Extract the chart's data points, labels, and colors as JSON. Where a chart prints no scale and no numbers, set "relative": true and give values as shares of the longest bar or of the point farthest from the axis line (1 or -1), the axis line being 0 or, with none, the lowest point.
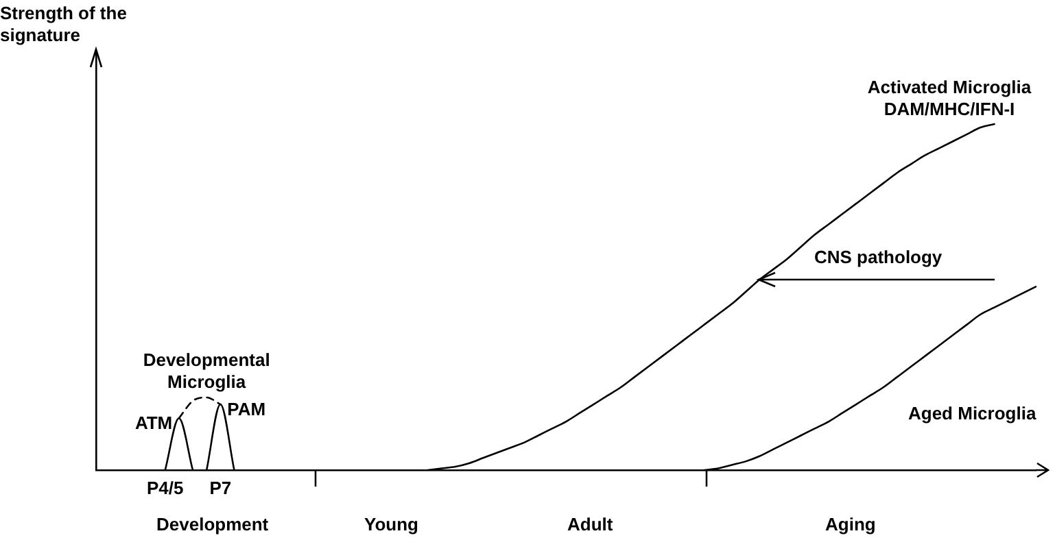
{
  "chart_data": {
    "type": "line",
    "relative": true,
    "ylabel": "Strength of the signature",
    "marker": "none",
    "line_style": "solid",
    "categories": [
      null,
      null,
      null,
      null,
      null,
      "P4/5",
      null,
      null,
      null,
      "P7",
      null,
      null,
      null,
      null,
      null,
      null,
      null,
      null,
      null,
      null,
      null,
      null,
      null,
      null,
      null,
      null,
      null,
      null,
      null,
      null,
      null,
      null,
      null,
      null,
      null,
      null,
      null,
      null,
      null,
      null,
      null,
      null,
      null,
      null,
      null,
      null,
      null,
      null,
      null,
      null,
      null,
      null,
      null,
      null,
      null,
      null,
      null,
      null,
      null,
      null,
      null,
      null,
      null,
      null,
      null,
      null,
      null,
      null,
      null
    ],
    "series": [
      {
        "name": "Activated Microglia DAM/MHC/IFN-I",
        "color": "#000000",
        "values": [
          null,
          null,
          null,
          null,
          null,
          null,
          null,
          null,
          null,
          null,
          null,
          null,
          null,
          null,
          null,
          null,
          null,
          null,
          null,
          null,
          null,
          null,
          null,
          null,
          0,
          0.005,
          0.01,
          0.02,
          0.035,
          0.05,
          0.065,
          0.08,
          0.1,
          0.12,
          0.14,
          0.165,
          0.19,
          0.215,
          0.24,
          0.27,
          0.3,
          0.33,
          0.36,
          0.39,
          0.42,
          0.45,
          0.48,
          0.515,
          0.55,
          0.58,
          0.61,
          0.645,
          0.68,
          0.71,
          0.74,
          0.77,
          0.8,
          0.83,
          0.86,
          0.885,
          0.91,
          0.93,
          0.95,
          0.97,
          0.99,
          1,
          null,
          null,
          null
        ]
      },
      {
        "name": "Aged Microglia",
        "color": "#000000",
        "values": [
          null,
          null,
          null,
          null,
          null,
          null,
          null,
          null,
          null,
          null,
          null,
          null,
          null,
          null,
          null,
          null,
          null,
          null,
          null,
          null,
          null,
          null,
          null,
          null,
          null,
          null,
          null,
          null,
          null,
          null,
          null,
          null,
          null,
          null,
          null,
          null,
          null,
          null,
          null,
          null,
          null,
          null,
          null,
          null,
          0,
          0.005,
          0.015,
          0.025,
          0.04,
          0.06,
          0.08,
          0.1,
          0.12,
          0.14,
          0.165,
          0.19,
          0.215,
          0.24,
          0.27,
          0.3,
          0.33,
          0.36,
          0.39,
          0.42,
          0.45,
          0.47,
          0.49,
          0.51,
          0.53
        ]
      },
      {
        "name": "Developmental Microglia",
        "color": "#000000",
        "line_style": "dashed",
        "values": [
          null,
          null,
          null,
          null,
          null,
          null,
          0.15,
          0.2,
          0.21,
          0.19,
          null,
          null,
          null,
          null,
          null,
          null,
          null,
          null,
          null,
          null,
          null,
          null,
          null,
          null,
          null,
          null,
          null,
          null,
          null,
          null,
          null,
          null,
          null,
          null,
          null,
          null,
          null,
          null,
          null,
          null,
          null,
          null,
          null,
          null,
          null,
          null,
          null,
          null,
          null,
          null,
          null,
          null,
          null,
          null,
          null,
          null,
          null,
          null,
          null,
          null,
          null,
          null,
          null,
          null,
          null,
          null,
          null,
          null,
          null
        ]
      },
      {
        "name": "ATM",
        "color": "#000000",
        "values": [
          null,
          null,
          null,
          null,
          null,
          0,
          0.15,
          0,
          null,
          null,
          null,
          null,
          null,
          null,
          null,
          null,
          null,
          null,
          null,
          null,
          null,
          null,
          null,
          null,
          null,
          null,
          null,
          null,
          null,
          null,
          null,
          null,
          null,
          null,
          null,
          null,
          null,
          null,
          null,
          null,
          null,
          null,
          null,
          null,
          null,
          null,
          null,
          null,
          null,
          null,
          null,
          null,
          null,
          null,
          null,
          null,
          null,
          null,
          null,
          null,
          null,
          null,
          null,
          null,
          null,
          null,
          null,
          null,
          null
        ]
      },
      {
        "name": "PAM",
        "color": "#000000",
        "values": [
          null,
          null,
          null,
          null,
          null,
          null,
          null,
          null,
          0,
          0.19,
          0,
          null,
          null,
          null,
          null,
          null,
          null,
          null,
          null,
          null,
          null,
          null,
          null,
          null,
          null,
          null,
          null,
          null,
          null,
          null,
          null,
          null,
          null,
          null,
          null,
          null,
          null,
          null,
          null,
          null,
          null,
          null,
          null,
          null,
          null,
          null,
          null,
          null,
          null,
          null,
          null,
          null,
          null,
          null,
          null,
          null,
          null,
          null,
          null,
          null,
          null,
          null,
          null,
          null,
          null,
          null,
          null,
          null,
          null
        ]
      }
    ],
    "annotations": [
      "Development",
      "Young",
      "Adult",
      "Aging",
      "CNS pathology"
    ]
  }
}
